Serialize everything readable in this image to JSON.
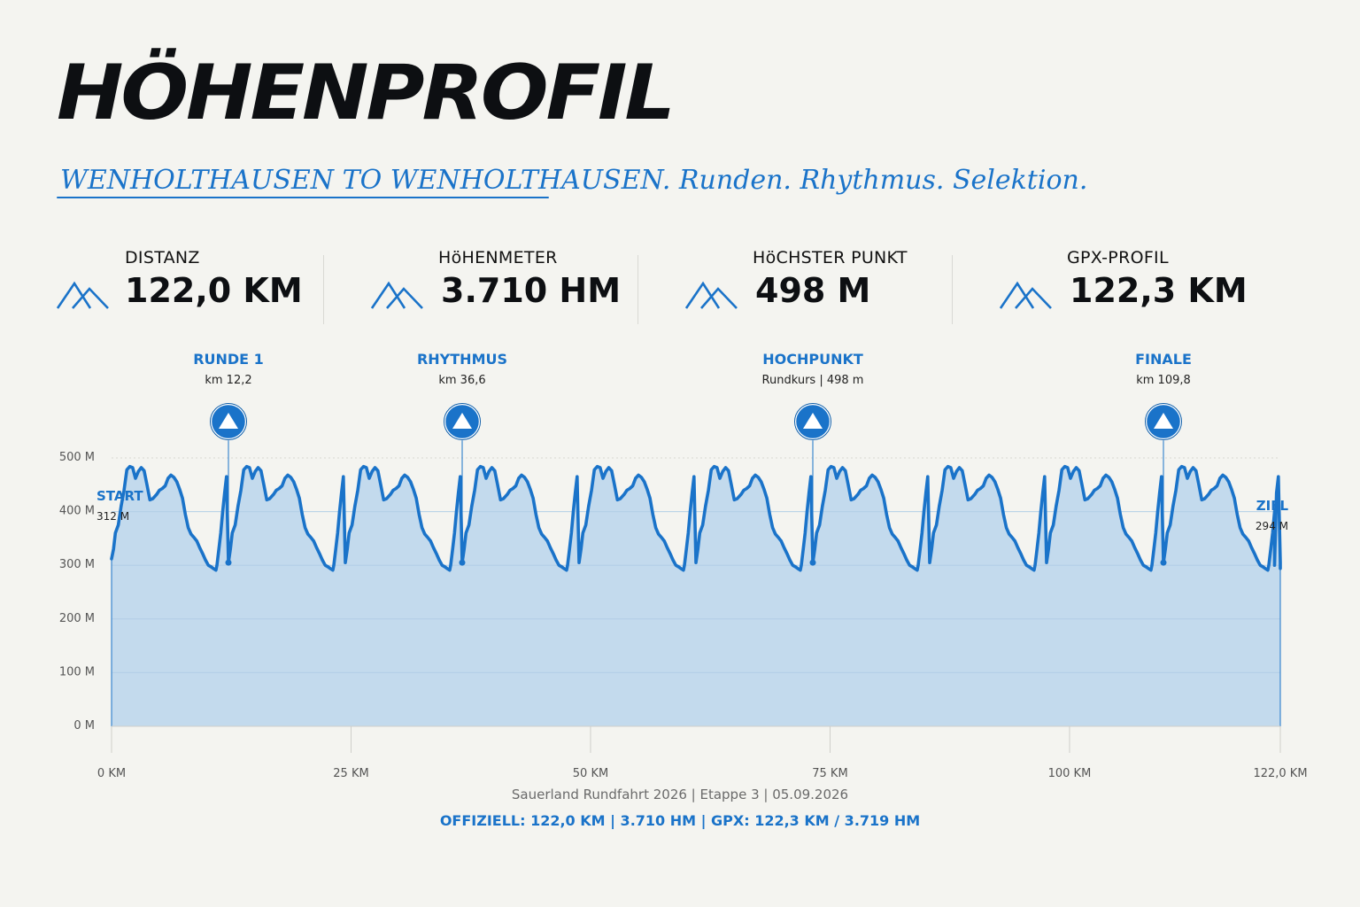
{
  "header": {
    "title": "HÖHENPROFIL",
    "subtitle": "WENHOLTHAUSEN TO WENHOLTHAUSEN. Runden. Rhythmus. Selektion."
  },
  "stats": [
    {
      "label": "DISTANZ",
      "value": "122,0 KM",
      "icon": "mountain-icon"
    },
    {
      "label": "HöHENMETER",
      "value": "3.710 HM",
      "icon": "mountain-icon"
    },
    {
      "label": "HöCHSTER PUNKT",
      "value": "498 M",
      "icon": "mountain-icon"
    },
    {
      "label": "GPX-PROFIL",
      "value": "122,3 KM",
      "icon": "mountain-icon"
    }
  ],
  "colors": {
    "accent": "#1a73c9",
    "fill": "#c0d8ec",
    "background": "#f4f4f0"
  },
  "chart_data": {
    "type": "area",
    "xlabel": "",
    "ylabel": "",
    "xlim": [
      0,
      122
    ],
    "ylim": [
      0,
      500
    ],
    "grid": true,
    "x_ticks": [
      {
        "value": 0,
        "label": "0 KM"
      },
      {
        "value": 25,
        "label": "25 KM"
      },
      {
        "value": 50,
        "label": "50 KM"
      },
      {
        "value": 75,
        "label": "75 KM"
      },
      {
        "value": 100,
        "label": "100 KM"
      },
      {
        "value": 122,
        "label": "122,0 KM"
      }
    ],
    "y_ticks": [
      {
        "value": 0,
        "label": "0 M"
      },
      {
        "value": 100,
        "label": "100 M"
      },
      {
        "value": 200,
        "label": "200 M"
      },
      {
        "value": 300,
        "label": "300 M"
      },
      {
        "value": 400,
        "label": "400 M"
      },
      {
        "value": 500,
        "label": "500 M"
      }
    ],
    "lap_km": 12.2,
    "lap_profile": [
      [
        0.0,
        305
      ],
      [
        0.2,
        330
      ],
      [
        0.4,
        360
      ],
      [
        0.7,
        375
      ],
      [
        1.0,
        410
      ],
      [
        1.3,
        440
      ],
      [
        1.6,
        478
      ],
      [
        1.9,
        484
      ],
      [
        2.2,
        482
      ],
      [
        2.5,
        462
      ],
      [
        2.8,
        475
      ],
      [
        3.1,
        482
      ],
      [
        3.4,
        476
      ],
      [
        3.7,
        450
      ],
      [
        4.0,
        422
      ],
      [
        4.3,
        424
      ],
      [
        4.7,
        432
      ],
      [
        5.0,
        440
      ],
      [
        5.3,
        443
      ],
      [
        5.6,
        448
      ],
      [
        5.9,
        462
      ],
      [
        6.2,
        468
      ],
      [
        6.5,
        464
      ],
      [
        6.8,
        456
      ],
      [
        7.1,
        442
      ],
      [
        7.4,
        425
      ],
      [
        7.7,
        395
      ],
      [
        8.0,
        370
      ],
      [
        8.3,
        358
      ],
      [
        8.6,
        352
      ],
      [
        8.9,
        345
      ],
      [
        9.2,
        333
      ],
      [
        9.5,
        322
      ],
      [
        9.8,
        310
      ],
      [
        10.1,
        300
      ],
      [
        10.4,
        297
      ],
      [
        10.7,
        293
      ],
      [
        10.9,
        291
      ],
      [
        11.0,
        300
      ],
      [
        11.2,
        330
      ],
      [
        11.4,
        360
      ],
      [
        11.6,
        400
      ],
      [
        11.8,
        435
      ],
      [
        12.0,
        465
      ],
      [
        12.2,
        305
      ]
    ],
    "series": [
      {
        "start": {
          "label": "START",
          "value": "312 M",
          "km": 0,
          "elevation": 312
        }
      },
      {
        "end": {
          "label": "ZIEL",
          "value": "294 M",
          "km": 122,
          "elevation": 294
        }
      }
    ],
    "markers": [
      {
        "km": 12.2,
        "title": "RUNDE 1",
        "subtitle": "km 12,2"
      },
      {
        "km": 36.6,
        "title": "RHYTHMUS",
        "subtitle": "km 36,6"
      },
      {
        "km": 73.2,
        "title": "HOCHPUNKT",
        "subtitle": "Rundkurs | 498 m"
      },
      {
        "km": 109.8,
        "title": "FINALE",
        "subtitle": "km 109,8"
      }
    ]
  },
  "footer": {
    "event": "Sauerland Rundfahrt 2026 | Etappe 3 | 05.09.2026",
    "official": "OFFIZIELL: 122,0 KM | 3.710 HM | GPX: 122,3 KM / 3.719 HM"
  }
}
